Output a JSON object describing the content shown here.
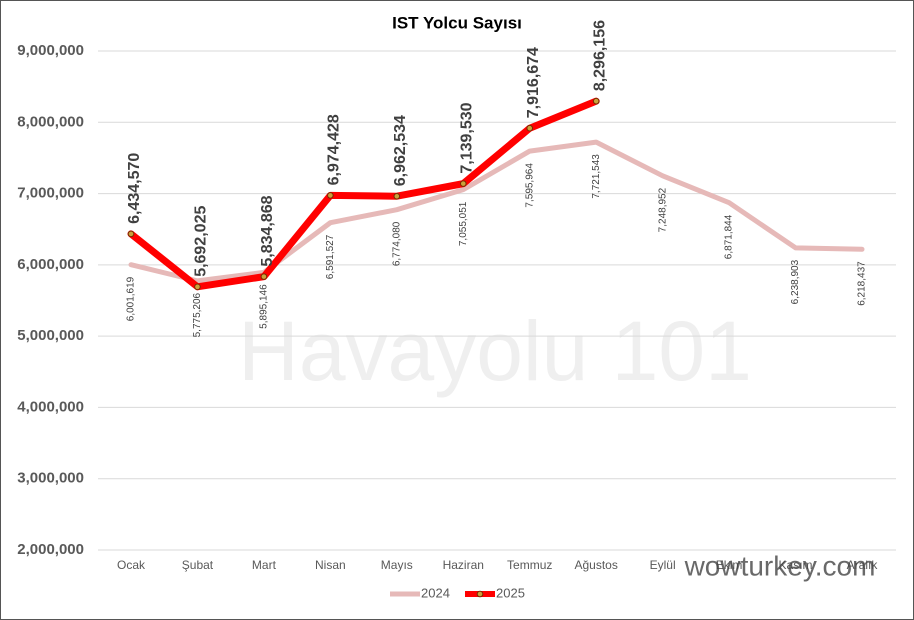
{
  "chart_data": {
    "type": "line",
    "title": "IST Yolcu Sayısı",
    "categories": [
      "Ocak",
      "Şubat",
      "Mart",
      "Nisan",
      "Mayıs",
      "Haziran",
      "Temmuz",
      "Ağustos",
      "Eylül",
      "Ekim",
      "Kasım",
      "Aralık"
    ],
    "series": [
      {
        "name": "2024",
        "color": "#e6b9b8",
        "values": [
          6001619,
          5775206,
          5895146,
          6591527,
          6774080,
          7055051,
          7595964,
          7721543,
          7248952,
          6871844,
          6238903,
          6218437
        ],
        "value_labels": [
          "6,001,619",
          "5,775,206",
          "5,895,146",
          "6,591,527",
          "6,774,080",
          "7,055,051",
          "7,595,964",
          "7,721,543",
          "7,248,952",
          "6,871,844",
          "6,238,903",
          "6,218,437"
        ]
      },
      {
        "name": "2025",
        "color": "#ff0000",
        "values": [
          6434570,
          5692025,
          5834868,
          6974428,
          6962534,
          7139530,
          7916674,
          8296156,
          null,
          null,
          null,
          null
        ],
        "value_labels": [
          "6,434,570",
          "5,692,025",
          "5,834,868",
          "6,974,428",
          "6,962,534",
          "7,139,530",
          "7,916,674",
          "8,296,156",
          null,
          null,
          null,
          null
        ]
      }
    ],
    "ylim": [
      2000000,
      9000000
    ],
    "yticks": [
      {
        "value": 2000000,
        "label": "2,000,000"
      },
      {
        "value": 3000000,
        "label": "3,000,000"
      },
      {
        "value": 4000000,
        "label": "4,000,000"
      },
      {
        "value": 5000000,
        "label": "5,000,000"
      },
      {
        "value": 6000000,
        "label": "6,000,000"
      },
      {
        "value": 7000000,
        "label": "7,000,000"
      },
      {
        "value": 8000000,
        "label": "8,000,000"
      },
      {
        "value": 9000000,
        "label": "9,000,000"
      }
    ],
    "grid": true,
    "legend": "bottom",
    "annotations": [
      "Havayolu 101",
      "wowturkey.com"
    ]
  }
}
